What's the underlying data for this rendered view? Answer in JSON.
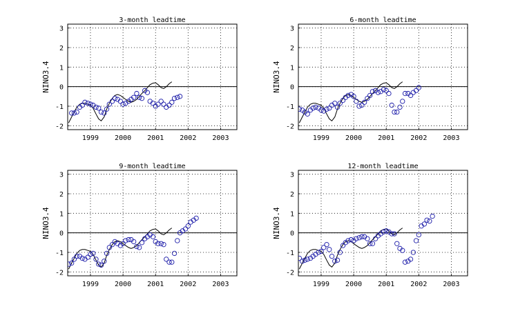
{
  "chart_data": [
    {
      "type": "scatter",
      "title": "3-month leadtime",
      "ylabel": "NINO3.4",
      "xlim": [
        1998.3,
        2003.5
      ],
      "ylim": [
        -2.2,
        3.2
      ],
      "x_ticks": [
        1999,
        2000,
        2001,
        2002,
        2003
      ],
      "x_tick_labels": [
        "1999",
        "2000",
        "2001",
        "2002",
        "2003"
      ],
      "y_ticks": [
        -2,
        -1,
        0,
        1,
        2,
        3
      ],
      "y_tick_labels": [
        "-2",
        "-1",
        "0",
        "1",
        "2",
        "3"
      ],
      "grid": true,
      "zero_line": true,
      "series": [
        {
          "style": "line",
          "x": [
            1998.33,
            1998.42,
            1998.5,
            1998.58,
            1998.67,
            1998.75,
            1998.83,
            1998.92,
            1999.0,
            1999.08,
            1999.17,
            1999.25,
            1999.33,
            1999.42,
            1999.5,
            1999.58,
            1999.67,
            1999.75,
            1999.83,
            1999.92,
            2000.0,
            2000.08,
            2000.17,
            2000.25,
            2000.33,
            2000.42,
            2000.5,
            2000.58,
            2000.67,
            2000.75,
            2000.83,
            2000.92,
            2001.0,
            2001.08,
            2001.17,
            2001.25,
            2001.33,
            2001.42,
            2001.5
          ],
          "y": [
            -1.85,
            -1.55,
            -1.3,
            -1.05,
            -0.9,
            -0.85,
            -0.85,
            -0.9,
            -0.95,
            -1.1,
            -1.4,
            -1.65,
            -1.75,
            -1.55,
            -1.15,
            -0.85,
            -0.6,
            -0.45,
            -0.4,
            -0.45,
            -0.55,
            -0.65,
            -0.75,
            -0.8,
            -0.75,
            -0.65,
            -0.5,
            -0.35,
            -0.2,
            -0.05,
            0.1,
            0.18,
            0.2,
            0.1,
            -0.05,
            -0.1,
            0.0,
            0.15,
            0.25
          ]
        },
        {
          "style": "markers",
          "x": [
            1998.42,
            1998.5,
            1998.58,
            1998.67,
            1998.75,
            1998.83,
            1998.92,
            1999.0,
            1999.08,
            1999.17,
            1999.25,
            1999.33,
            1999.42,
            1999.5,
            1999.58,
            1999.67,
            1999.75,
            1999.83,
            1999.92,
            2000.0,
            2000.08,
            2000.17,
            2000.25,
            2000.33,
            2000.42,
            2000.5,
            2000.58,
            2000.67,
            2000.75,
            2000.83,
            2000.92,
            2001.0,
            2001.08,
            2001.17,
            2001.25,
            2001.33,
            2001.42,
            2001.5,
            2001.58,
            2001.67,
            2001.75
          ],
          "y": [
            -1.35,
            -1.35,
            -1.3,
            -1.05,
            -0.95,
            -0.8,
            -0.85,
            -0.9,
            -0.95,
            -1.05,
            -1.1,
            -1.3,
            -1.35,
            -1.15,
            -0.9,
            -0.75,
            -0.6,
            -0.65,
            -0.75,
            -0.9,
            -0.85,
            -0.75,
            -0.65,
            -0.55,
            -0.35,
            -0.55,
            -0.6,
            -0.2,
            -0.3,
            -0.75,
            -0.85,
            -1.0,
            -0.9,
            -0.75,
            -0.9,
            -1.05,
            -0.95,
            -0.8,
            -0.6,
            -0.55,
            -0.5
          ]
        }
      ]
    },
    {
      "type": "scatter",
      "title": "6-month leadtime",
      "ylabel": "NINO3.4",
      "xlim": [
        1998.3,
        2003.5
      ],
      "ylim": [
        -2.2,
        3.2
      ],
      "x_ticks": [
        1999,
        2000,
        2001,
        2002,
        2003
      ],
      "x_tick_labels": [
        "1999",
        "2000",
        "2001",
        "2002",
        "2003"
      ],
      "y_ticks": [
        -2,
        -1,
        0,
        1,
        2,
        3
      ],
      "y_tick_labels": [
        "-2",
        "-1",
        "0",
        "1",
        "2",
        "3"
      ],
      "grid": true,
      "zero_line": true,
      "series": [
        {
          "style": "line",
          "x": [
            1998.33,
            1998.42,
            1998.5,
            1998.58,
            1998.67,
            1998.75,
            1998.83,
            1998.92,
            1999.0,
            1999.08,
            1999.17,
            1999.25,
            1999.33,
            1999.42,
            1999.5,
            1999.58,
            1999.67,
            1999.75,
            1999.83,
            1999.92,
            2000.0,
            2000.08,
            2000.17,
            2000.25,
            2000.33,
            2000.42,
            2000.5,
            2000.58,
            2000.67,
            2000.75,
            2000.83,
            2000.92,
            2001.0,
            2001.08,
            2001.17,
            2001.25,
            2001.33,
            2001.42,
            2001.5
          ],
          "y": [
            -1.85,
            -1.55,
            -1.3,
            -1.05,
            -0.9,
            -0.85,
            -0.85,
            -0.9,
            -0.95,
            -1.1,
            -1.4,
            -1.65,
            -1.75,
            -1.55,
            -1.15,
            -0.85,
            -0.6,
            -0.45,
            -0.4,
            -0.45,
            -0.55,
            -0.65,
            -0.75,
            -0.8,
            -0.75,
            -0.65,
            -0.5,
            -0.35,
            -0.2,
            -0.05,
            0.1,
            0.18,
            0.2,
            0.1,
            -0.05,
            -0.1,
            0.0,
            0.15,
            0.25
          ]
        },
        {
          "style": "markers",
          "x": [
            1998.33,
            1998.42,
            1998.5,
            1998.58,
            1998.67,
            1998.75,
            1998.83,
            1998.92,
            1999.0,
            1999.08,
            1999.17,
            1999.25,
            1999.33,
            1999.42,
            1999.5,
            1999.58,
            1999.67,
            1999.75,
            1999.83,
            1999.92,
            2000.0,
            2000.08,
            2000.17,
            2000.25,
            2000.33,
            2000.42,
            2000.5,
            2000.58,
            2000.67,
            2000.75,
            2000.83,
            2000.92,
            2001.0,
            2001.08,
            2001.17,
            2001.25,
            2001.33,
            2001.42,
            2001.5,
            2001.58,
            2001.67,
            2001.75,
            2001.83,
            2001.92,
            2002.0
          ],
          "y": [
            -1.15,
            -1.2,
            -1.3,
            -1.4,
            -1.2,
            -1.1,
            -1.05,
            -1.1,
            -1.2,
            -1.25,
            -1.15,
            -1.1,
            -0.95,
            -0.85,
            -1.05,
            -0.85,
            -0.7,
            -0.55,
            -0.45,
            -0.4,
            -0.5,
            -0.75,
            -1.0,
            -0.95,
            -0.8,
            -0.6,
            -0.45,
            -0.25,
            -0.2,
            -0.3,
            -0.25,
            -0.15,
            -0.2,
            -0.35,
            -0.95,
            -1.3,
            -1.3,
            -1.05,
            -0.75,
            -0.35,
            -0.35,
            -0.45,
            -0.3,
            -0.2,
            -0.05
          ]
        }
      ]
    },
    {
      "type": "scatter",
      "title": "9-month leadtime",
      "ylabel": "NINO3.4",
      "xlim": [
        1998.3,
        2003.5
      ],
      "ylim": [
        -2.2,
        3.2
      ],
      "x_ticks": [
        1999,
        2000,
        2001,
        2002,
        2003
      ],
      "x_tick_labels": [
        "1999",
        "2000",
        "2001",
        "2002",
        "2003"
      ],
      "y_ticks": [
        -2,
        -1,
        0,
        1,
        2,
        3
      ],
      "y_tick_labels": [
        "-2",
        "-1",
        "0",
        "1",
        "2",
        "3"
      ],
      "grid": true,
      "zero_line": true,
      "series": [
        {
          "style": "line",
          "x": [
            1998.33,
            1998.42,
            1998.5,
            1998.58,
            1998.67,
            1998.75,
            1998.83,
            1998.92,
            1999.0,
            1999.08,
            1999.17,
            1999.25,
            1999.33,
            1999.42,
            1999.5,
            1999.58,
            1999.67,
            1999.75,
            1999.83,
            1999.92,
            2000.0,
            2000.08,
            2000.17,
            2000.25,
            2000.33,
            2000.42,
            2000.5,
            2000.58,
            2000.67,
            2000.75,
            2000.83,
            2000.92,
            2001.0,
            2001.08,
            2001.17,
            2001.25,
            2001.33,
            2001.42,
            2001.5
          ],
          "y": [
            -1.85,
            -1.55,
            -1.3,
            -1.05,
            -0.9,
            -0.85,
            -0.85,
            -0.9,
            -0.95,
            -1.1,
            -1.4,
            -1.65,
            -1.75,
            -1.55,
            -1.15,
            -0.85,
            -0.6,
            -0.45,
            -0.4,
            -0.45,
            -0.55,
            -0.65,
            -0.75,
            -0.8,
            -0.75,
            -0.65,
            -0.5,
            -0.35,
            -0.2,
            -0.05,
            0.1,
            0.18,
            0.2,
            0.1,
            -0.05,
            -0.1,
            0.0,
            0.15,
            0.25
          ]
        },
        {
          "style": "markers",
          "x": [
            1998.33,
            1998.42,
            1998.5,
            1998.58,
            1998.67,
            1998.75,
            1998.83,
            1998.92,
            1999.0,
            1999.08,
            1999.17,
            1999.25,
            1999.33,
            1999.42,
            1999.5,
            1999.58,
            1999.67,
            1999.75,
            1999.83,
            1999.92,
            2000.0,
            2000.08,
            2000.17,
            2000.25,
            2000.33,
            2000.42,
            2000.5,
            2000.58,
            2000.67,
            2000.75,
            2000.83,
            2000.92,
            2001.0,
            2001.08,
            2001.17,
            2001.25,
            2001.33,
            2001.42,
            2001.5,
            2001.58,
            2001.67,
            2001.75,
            2001.83,
            2001.92,
            2002.0,
            2002.08,
            2002.17,
            2002.25
          ],
          "y": [
            -1.6,
            -1.55,
            -1.35,
            -1.2,
            -1.2,
            -1.3,
            -1.35,
            -1.25,
            -1.1,
            -1.05,
            -1.35,
            -1.6,
            -1.65,
            -1.45,
            -1.05,
            -0.75,
            -0.6,
            -0.45,
            -0.55,
            -0.65,
            -0.55,
            -0.4,
            -0.35,
            -0.35,
            -0.45,
            -0.7,
            -0.75,
            -0.5,
            -0.3,
            -0.2,
            -0.1,
            -0.2,
            -0.45,
            -0.55,
            -0.55,
            -0.6,
            -1.35,
            -1.5,
            -1.5,
            -1.05,
            -0.4,
            0.0,
            0.1,
            0.2,
            0.35,
            0.55,
            0.65,
            0.75
          ]
        }
      ]
    },
    {
      "type": "scatter",
      "title": "12-month leadtime",
      "ylabel": "NINO3.4",
      "xlim": [
        1998.3,
        2003.5
      ],
      "ylim": [
        -2.2,
        3.2
      ],
      "x_ticks": [
        1999,
        2000,
        2001,
        2002,
        2003
      ],
      "x_tick_labels": [
        "1999",
        "2000",
        "2001",
        "2002",
        "2003"
      ],
      "y_ticks": [
        -2,
        -1,
        0,
        1,
        2,
        3
      ],
      "y_tick_labels": [
        "-2",
        "-1",
        "0",
        "1",
        "2",
        "3"
      ],
      "grid": true,
      "zero_line": true,
      "series": [
        {
          "style": "line",
          "x": [
            1998.33,
            1998.42,
            1998.5,
            1998.58,
            1998.67,
            1998.75,
            1998.83,
            1998.92,
            1999.0,
            1999.08,
            1999.17,
            1999.25,
            1999.33,
            1999.42,
            1999.5,
            1999.58,
            1999.67,
            1999.75,
            1999.83,
            1999.92,
            2000.0,
            2000.08,
            2000.17,
            2000.25,
            2000.33,
            2000.42,
            2000.5,
            2000.58,
            2000.67,
            2000.75,
            2000.83,
            2000.92,
            2001.0,
            2001.08,
            2001.17,
            2001.25,
            2001.33,
            2001.42,
            2001.5
          ],
          "y": [
            -1.85,
            -1.55,
            -1.3,
            -1.05,
            -0.9,
            -0.85,
            -0.85,
            -0.9,
            -0.95,
            -1.1,
            -1.4,
            -1.65,
            -1.75,
            -1.55,
            -1.15,
            -0.85,
            -0.6,
            -0.45,
            -0.4,
            -0.45,
            -0.55,
            -0.65,
            -0.75,
            -0.8,
            -0.75,
            -0.65,
            -0.5,
            -0.35,
            -0.2,
            -0.05,
            0.1,
            0.18,
            0.2,
            0.1,
            -0.05,
            -0.1,
            0.0,
            0.15,
            0.25
          ]
        },
        {
          "style": "markers",
          "x": [
            1998.33,
            1998.42,
            1998.5,
            1998.58,
            1998.67,
            1998.75,
            1998.83,
            1998.92,
            1999.0,
            1999.08,
            1999.17,
            1999.25,
            1999.33,
            1999.42,
            1999.5,
            1999.58,
            1999.67,
            1999.75,
            1999.83,
            1999.92,
            2000.0,
            2000.08,
            2000.17,
            2000.25,
            2000.33,
            2000.42,
            2000.5,
            2000.58,
            2000.67,
            2000.75,
            2000.83,
            2000.92,
            2001.0,
            2001.08,
            2001.17,
            2001.25,
            2001.33,
            2001.42,
            2001.5,
            2001.58,
            2001.67,
            2001.75,
            2001.83,
            2001.92,
            2002.0,
            2002.08,
            2002.17,
            2002.25,
            2002.33,
            2002.42
          ],
          "y": [
            -1.3,
            -1.45,
            -1.4,
            -1.35,
            -1.3,
            -1.2,
            -1.1,
            -1.0,
            -0.95,
            -0.75,
            -0.6,
            -0.85,
            -1.2,
            -1.45,
            -1.4,
            -1.0,
            -0.65,
            -0.5,
            -0.4,
            -0.35,
            -0.4,
            -0.3,
            -0.25,
            -0.2,
            -0.2,
            -0.3,
            -0.55,
            -0.55,
            -0.3,
            -0.15,
            -0.05,
            0.05,
            0.1,
            0.05,
            -0.05,
            -0.05,
            -0.55,
            -0.8,
            -0.9,
            -1.5,
            -1.45,
            -1.35,
            -1.0,
            -0.4,
            -0.1,
            0.35,
            0.45,
            0.65,
            0.6,
            0.85
          ]
        }
      ]
    }
  ]
}
